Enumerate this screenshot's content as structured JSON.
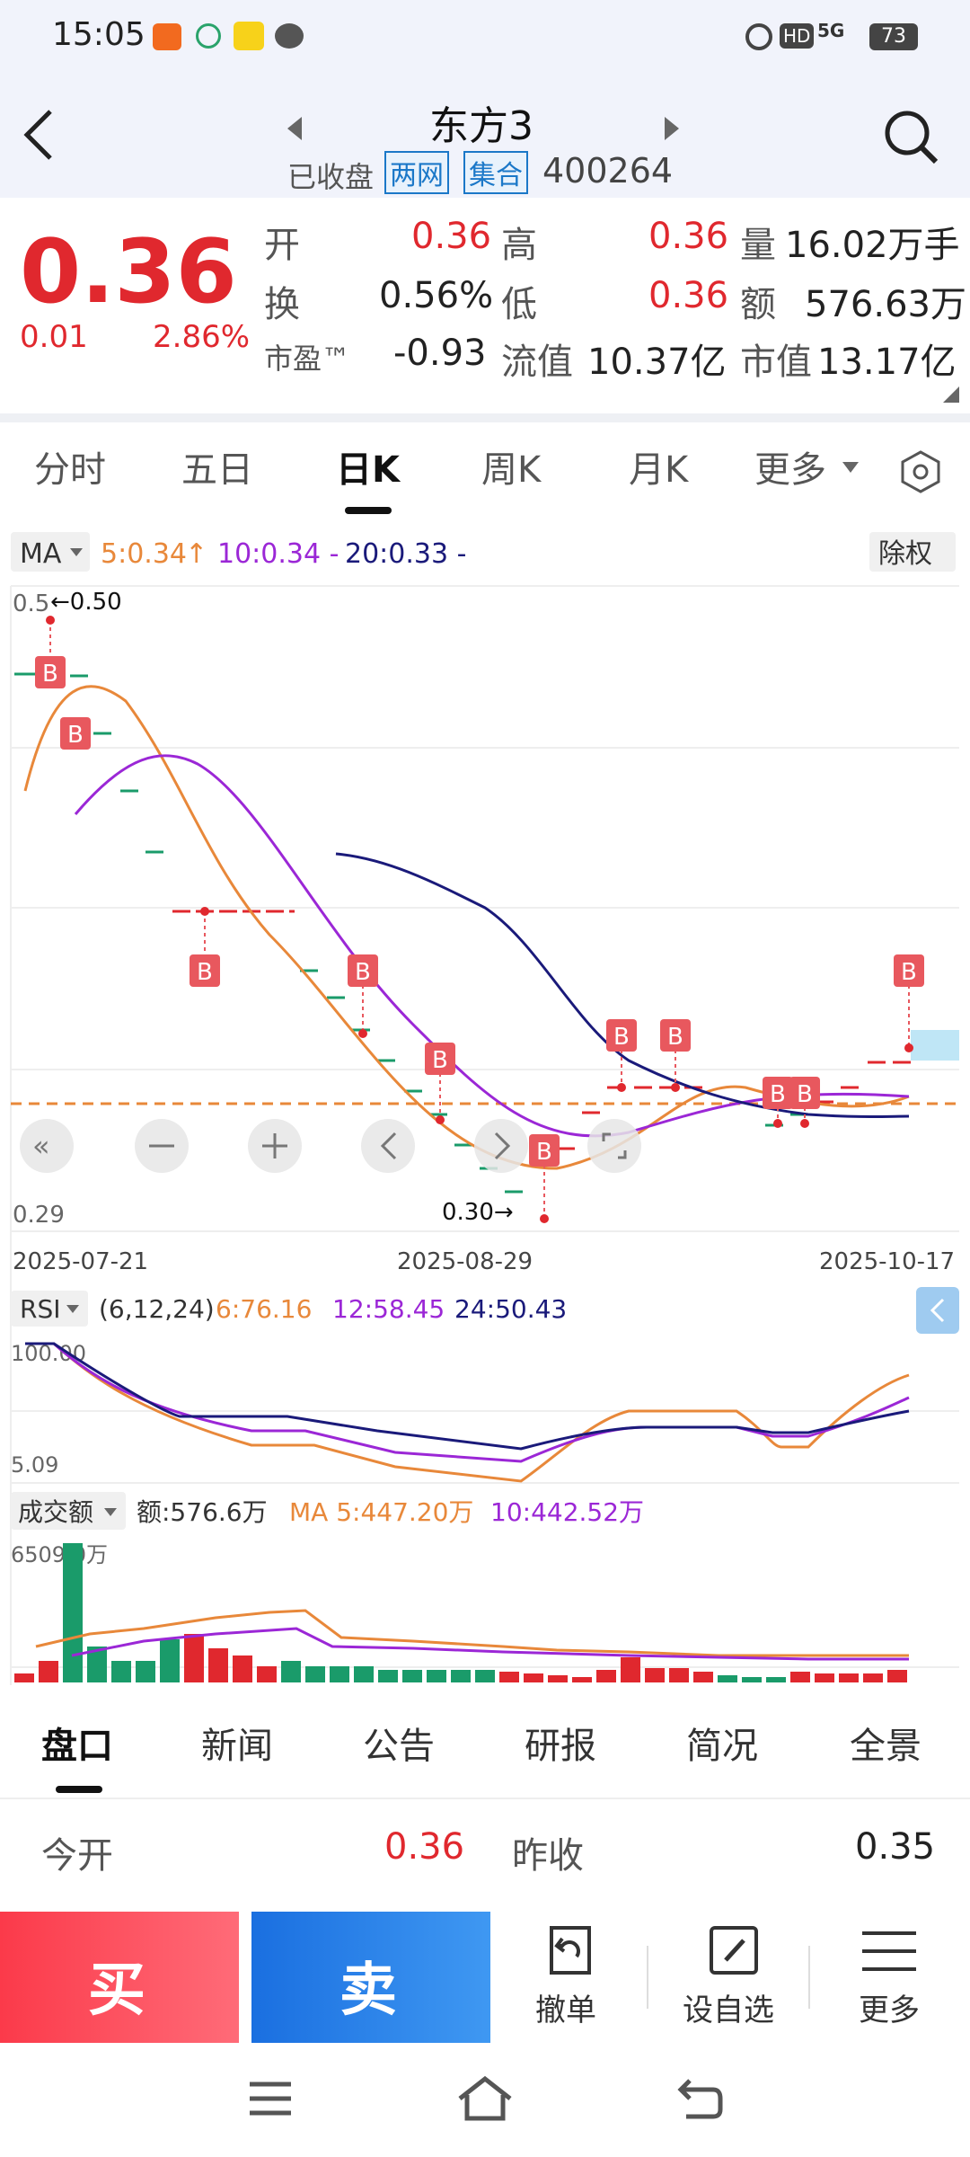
{
  "status_bar": {
    "time": "15:05",
    "battery": "73",
    "network": "5G",
    "hd": "HD"
  },
  "header": {
    "title": "东方3",
    "market_status": "已收盘",
    "tag1": "两网",
    "tag2": "集合",
    "code": "400264"
  },
  "quote": {
    "price": "0.36",
    "change": "0.01",
    "change_pct": "2.86%",
    "open_label": "开",
    "open": "0.36",
    "high_label": "高",
    "high": "0.36",
    "volume_label": "量",
    "volume": "16.02万手",
    "turnover_label": "换",
    "turnover": "0.56%",
    "low_label": "低",
    "low": "0.36",
    "amount_label": "额",
    "amount": "576.63万",
    "pe_label": "市盈™",
    "pe": "-0.93",
    "float_label": "流值",
    "float_value": "10.37亿",
    "mcap_label": "市值",
    "mcap": "13.17亿"
  },
  "period_tabs": [
    "分时",
    "五日",
    "日K",
    "周K",
    "月K",
    "更多"
  ],
  "ma_bar": {
    "selector": "MA",
    "ma5": "5:0.34",
    "ma10": "10:0.34 -",
    "ma20": "20:0.33 -",
    "adjust": "除权"
  },
  "kline": {
    "max_label": "0.5",
    "max_marker": "←0.50",
    "min_label": "0.29",
    "min_marker": "0.30→",
    "date_start": "2025-07-21",
    "date_mid": "2025-08-29",
    "date_end": "2025-10-17",
    "buy_marker": "B"
  },
  "rsi": {
    "selector": "RSI",
    "params": "(6,12,24)",
    "r6": "6:76.16",
    "r12": "12:58.45",
    "r24": "24:50.43",
    "top": "100.00",
    "bottom": "5.09"
  },
  "vol": {
    "selector": "成交额",
    "amount": "额:576.6万",
    "ma5": "MA 5:447.20万",
    "ma10": "10:442.52万",
    "max": "6509.0万"
  },
  "bottom_tabs": [
    "盘口",
    "新闻",
    "公告",
    "研报",
    "简况",
    "全景"
  ],
  "panel": {
    "open_label": "今开",
    "open": "0.36",
    "prev_label": "昨收",
    "prev": "0.35"
  },
  "actions": {
    "buy": "买",
    "sell": "卖",
    "cancel": "撤单",
    "watch": "设自选",
    "more": "更多"
  },
  "colors": {
    "up": "#e0282e",
    "down": "#1a9b6a",
    "ma5": "#e8883a",
    "ma10": "#9b27d6",
    "ma20": "#1a1a7a"
  }
}
